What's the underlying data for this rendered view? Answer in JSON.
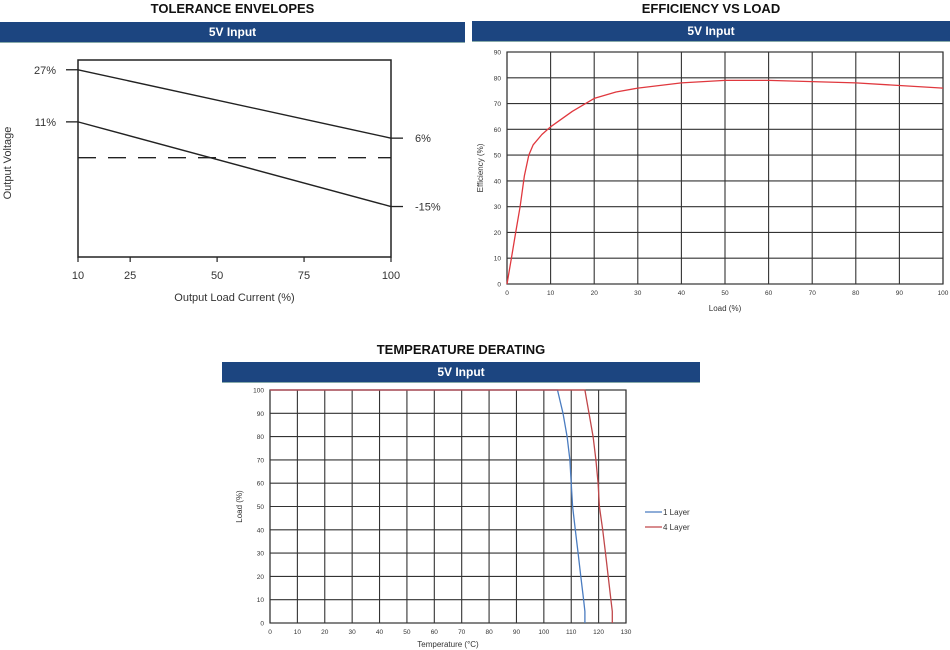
{
  "chart_data": [
    {
      "type": "line",
      "title": "TOLERANCE ENVELOPES",
      "subtitle": "5V Input",
      "xlabel": "Output Load Current (%)",
      "ylabel": "Output Voltage",
      "xlim": [
        10,
        100
      ],
      "ylim": [
        -30.5,
        30
      ],
      "xticks": [
        "10",
        "25",
        "50",
        "75",
        "100"
      ],
      "xtick_values": [
        10,
        25,
        50,
        75,
        100
      ],
      "grid": false,
      "series": [
        {
          "x": [
            10,
            100
          ],
          "y": [
            27,
            6
          ],
          "start_label": "27%",
          "end_label": "6%",
          "color": "#222222"
        },
        {
          "x": [
            10,
            100
          ],
          "y": [
            11,
            -15
          ],
          "start_label": "11%",
          "end_label": "-15%",
          "color": "#222222"
        }
      ],
      "reference_line": {
        "y": 0,
        "style": "dashed"
      }
    },
    {
      "type": "line",
      "title": "EFFICIENCY VS LOAD",
      "subtitle": "5V Input",
      "xlabel": "Load  (%)",
      "ylabel": "Efficiency  (%)",
      "xlim": [
        0,
        100
      ],
      "ylim": [
        0,
        90
      ],
      "xticks": [
        "0",
        "10",
        "20",
        "30",
        "40",
        "50",
        "60",
        "70",
        "80",
        "90",
        "100"
      ],
      "yticks": [
        "0",
        "10",
        "20",
        "30",
        "40",
        "50",
        "60",
        "70",
        "80",
        "90"
      ],
      "grid": true,
      "series": [
        {
          "color": "#e0383e",
          "x": [
            0,
            1,
            2,
            3,
            4,
            5,
            6,
            8,
            10,
            15,
            20,
            25,
            30,
            40,
            50,
            60,
            70,
            80,
            90,
            100
          ],
          "y": [
            0,
            10,
            20,
            30,
            42,
            50,
            54,
            58,
            61,
            67,
            72,
            74.5,
            76,
            78,
            79,
            79,
            78.5,
            78,
            77,
            76
          ]
        }
      ]
    },
    {
      "type": "line",
      "title": "TEMPERATURE DERATING",
      "subtitle": "5V Input",
      "xlabel": "Temperature (°C)",
      "ylabel": "Load  (%)",
      "xlim": [
        0,
        130
      ],
      "ylim": [
        0,
        100
      ],
      "xticks": [
        "0",
        "10",
        "20",
        "30",
        "40",
        "50",
        "60",
        "70",
        "80",
        "90",
        "100",
        "110",
        "120",
        "130"
      ],
      "yticks": [
        "0",
        "10",
        "20",
        "30",
        "40",
        "50",
        "60",
        "70",
        "80",
        "90",
        "100"
      ],
      "grid": true,
      "legend": "right",
      "series": [
        {
          "name": "1 Layer",
          "color": "#4a7cc0",
          "x": [
            0,
            105,
            107,
            108.5,
            109.5,
            110,
            110.5,
            111.5,
            112.5,
            113.5,
            114.5,
            115,
            115
          ],
          "y": [
            100,
            100,
            90,
            80,
            70,
            60,
            50,
            40,
            30,
            20,
            10,
            5,
            0
          ]
        },
        {
          "name": "4 Layer",
          "color": "#c0474a",
          "x": [
            0,
            115,
            116.5,
            118,
            119,
            119.8,
            120.3,
            121.5,
            122.5,
            123.5,
            124.5,
            125,
            125
          ],
          "y": [
            100,
            100,
            90,
            80,
            70,
            60,
            50,
            40,
            30,
            20,
            10,
            5,
            0
          ]
        }
      ]
    }
  ]
}
